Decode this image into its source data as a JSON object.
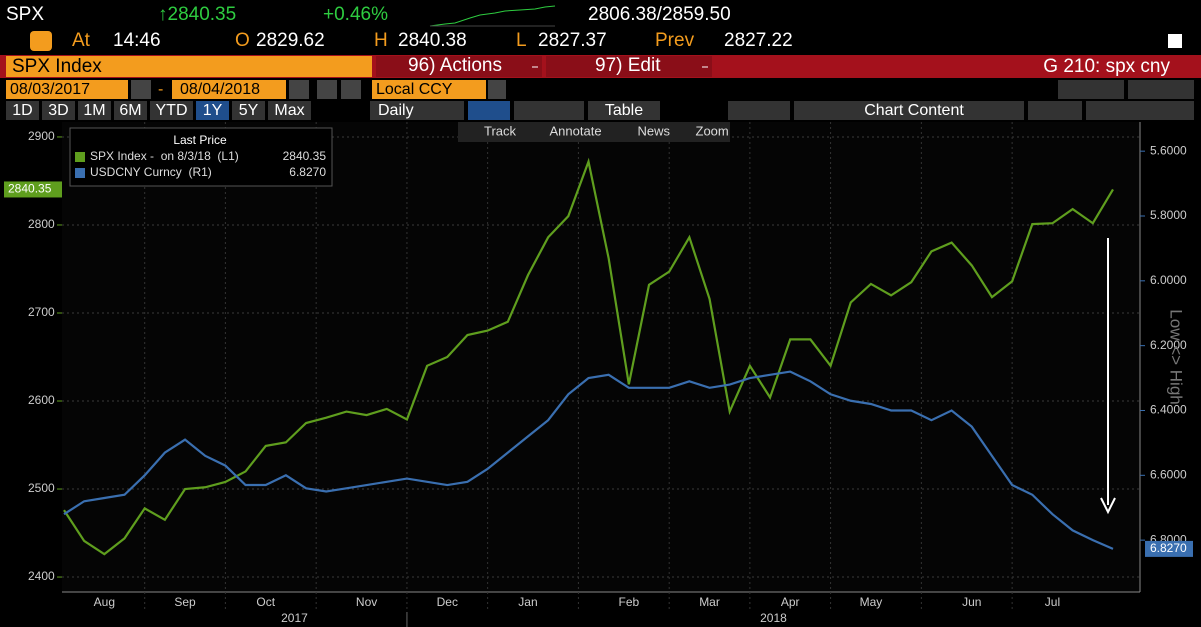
{
  "header": {
    "ticker": "SPX",
    "last": "↑2840.35",
    "change": "+0.46%",
    "range": "2806.38/2859.50",
    "time_label": "At",
    "time": "14:46",
    "open_label": "O",
    "open": "2829.62",
    "high_label": "H",
    "high": "2840.38",
    "low_label": "L",
    "low": "2827.37",
    "prev_label": "Prev",
    "prev": "2827.22"
  },
  "toolbar": {
    "security": "SPX Index",
    "actions": "96) Actions",
    "edit": "97) Edit",
    "function": "G 210: spx cny",
    "start_date": "08/03/2017",
    "date_separator": "-",
    "end_date": "08/04/2018",
    "currency": "Local CCY",
    "periods": [
      "1D",
      "3D",
      "1M",
      "6M",
      "YTD",
      "1Y",
      "5Y",
      "Max"
    ],
    "frequency": "Daily",
    "table": "Table",
    "chart_content": "Chart Content",
    "tools": [
      "Track",
      "Annotate",
      "News",
      "Zoom"
    ]
  },
  "chart_data": {
    "type": "line",
    "legend_title": "Last Price",
    "categories": [
      null,
      null,
      "Aug",
      null,
      null,
      null,
      "Sep",
      null,
      null,
      null,
      "Oct",
      null,
      null,
      null,
      null,
      "Nov",
      null,
      null,
      null,
      "Dec",
      null,
      null,
      null,
      "Jan",
      null,
      null,
      null,
      null,
      "Feb",
      null,
      null,
      null,
      "Mar",
      null,
      null,
      null,
      "Apr",
      null,
      null,
      null,
      "May",
      null,
      null,
      null,
      null,
      "Jun",
      null,
      null,
      null,
      "Jul",
      null,
      null,
      null
    ],
    "x_group_labels": [
      "2017",
      "2018"
    ],
    "series": [
      {
        "name": "SPX Index -  on 8/3/18  (L1)",
        "legend_value": "2840.35",
        "last_label": "2840.35",
        "color": "#5f9e1e",
        "axis": "y",
        "values": [
          2476,
          2441,
          2426,
          2444,
          2478,
          2465,
          2500,
          2502,
          2508,
          2520,
          2549,
          2553,
          2575,
          2581,
          2588,
          2584,
          2591,
          2579,
          2640,
          2650,
          2675,
          2680,
          2690,
          2743,
          2786,
          2810,
          2872,
          2762,
          2619,
          2732,
          2747,
          2786,
          2716,
          2588,
          2640,
          2604,
          2670,
          2670,
          2640,
          2712,
          2733,
          2720,
          2735,
          2770,
          2780,
          2754,
          2718,
          2736,
          2801,
          2802,
          2818,
          2802,
          2840.35
        ]
      },
      {
        "name": "USDCNY Curncy  (R1)",
        "legend_value": "6.8270",
        "last_label": "6.8270",
        "color": "#3a6fb0",
        "axis": "y2",
        "values": [
          6.72,
          6.68,
          6.67,
          6.66,
          6.6,
          6.53,
          6.49,
          6.54,
          6.57,
          6.63,
          6.63,
          6.6,
          6.64,
          6.65,
          6.64,
          6.63,
          6.62,
          6.61,
          6.62,
          6.63,
          6.62,
          6.58,
          6.53,
          6.48,
          6.43,
          6.35,
          6.3,
          6.29,
          6.33,
          6.33,
          6.33,
          6.31,
          6.33,
          6.32,
          6.3,
          6.29,
          6.28,
          6.31,
          6.35,
          6.37,
          6.38,
          6.4,
          6.4,
          6.43,
          6.4,
          6.45,
          6.54,
          6.63,
          6.66,
          6.72,
          6.77,
          6.8,
          6.827
        ]
      }
    ],
    "ylim": [
      2383,
      2917
    ],
    "yticks": [
      2400,
      2500,
      2600,
      2700,
      2800,
      2900
    ],
    "y2lim": [
      5.51,
      6.96
    ],
    "y2_inverted": true,
    "y2ticks": [
      {
        "value": 5.6,
        "label": "5.6000"
      },
      {
        "value": 5.8,
        "label": "5.8000"
      },
      {
        "value": 6.0,
        "label": "6.0000"
      },
      {
        "value": 6.2,
        "label": "6.2000"
      },
      {
        "value": 6.4,
        "label": "6.4000"
      },
      {
        "value": 6.6,
        "label": "6.6000"
      },
      {
        "value": 6.8,
        "label": "6.8000"
      }
    ],
    "y2label": "Low <> High",
    "grid": true
  }
}
